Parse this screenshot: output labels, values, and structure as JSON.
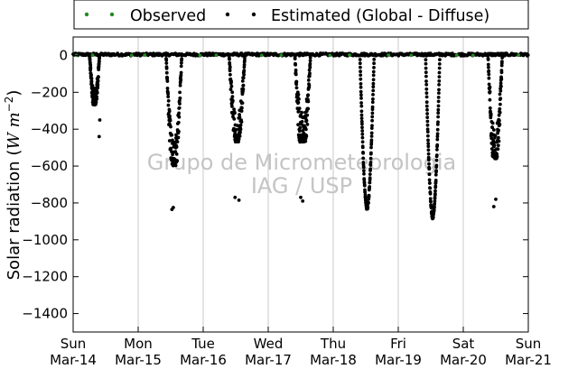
{
  "chart_data": {
    "type": "scatter",
    "title": "",
    "ylabel": "Solar radiation",
    "ylabel_unit_math": "(W m^{-2})",
    "ylim": [
      -1500,
      100
    ],
    "yticks": [
      0,
      -200,
      -400,
      -600,
      -800,
      -1000,
      -1200,
      -1400
    ],
    "xlim": [
      "2010-03-14",
      "2010-03-21"
    ],
    "xticks": [
      {
        "weekday": "Sun",
        "date": "Mar-14"
      },
      {
        "weekday": "Mon",
        "date": "Mar-15"
      },
      {
        "weekday": "Tue",
        "date": "Mar-16"
      },
      {
        "weekday": "Wed",
        "date": "Mar-17"
      },
      {
        "weekday": "Thu",
        "date": "Mar-18"
      },
      {
        "weekday": "Fri",
        "date": "Mar-19"
      },
      {
        "weekday": "Sat",
        "date": "Mar-20"
      },
      {
        "weekday": "Sun",
        "date": "Mar-21"
      }
    ],
    "grid": "vertical",
    "legend_position": "top",
    "watermark": [
      "Grupo de Micrometeorologia",
      "IAG / USP"
    ],
    "series": [
      {
        "name": "Observed",
        "color": "#228b22",
        "marker": "dot",
        "note_points": "values near 0 W/m2 throughout",
        "points": [
          {
            "day": 0.05,
            "value": 0
          },
          {
            "day": 0.3,
            "value": 1
          },
          {
            "day": 0.9,
            "value": 0
          },
          {
            "day": 1.1,
            "value": 2
          },
          {
            "day": 1.95,
            "value": 0
          },
          {
            "day": 2.2,
            "value": 1
          },
          {
            "day": 2.9,
            "value": 0
          },
          {
            "day": 3.2,
            "value": 1
          },
          {
            "day": 3.95,
            "value": 0
          },
          {
            "day": 4.25,
            "value": 2
          },
          {
            "day": 4.85,
            "value": 1
          },
          {
            "day": 5.2,
            "value": 0
          },
          {
            "day": 5.9,
            "value": 1
          },
          {
            "day": 6.15,
            "value": 0
          },
          {
            "day": 6.85,
            "value": 1
          }
        ]
      },
      {
        "name": "Estimated (Global - Diffuse)",
        "color": "#000000",
        "marker": "dot",
        "days": [
          {
            "center": 0.33,
            "width": 0.14,
            "peak": -230,
            "spread": 130,
            "outliers": [
              [
                0.4,
                -440
              ],
              [
                0.41,
                -350
              ]
            ]
          },
          {
            "center": 1.55,
            "width": 0.22,
            "peak": -560,
            "spread": 260,
            "outliers": [
              [
                1.52,
                -835
              ],
              [
                1.54,
                -825
              ]
            ]
          },
          {
            "center": 2.52,
            "width": 0.22,
            "peak": -430,
            "spread": 280,
            "outliers": [
              [
                2.55,
                -785
              ],
              [
                2.49,
                -770
              ]
            ]
          },
          {
            "center": 3.53,
            "width": 0.22,
            "peak": -430,
            "spread": 330,
            "outliers": [
              [
                3.53,
                -790
              ],
              [
                3.5,
                -770
              ]
            ]
          },
          {
            "center": 4.52,
            "width": 0.2,
            "peak": -820,
            "spread": 30,
            "outliers": []
          },
          {
            "center": 5.53,
            "width": 0.2,
            "peak": -870,
            "spread": 25,
            "outliers": []
          },
          {
            "center": 6.49,
            "width": 0.2,
            "peak": -520,
            "spread": 300,
            "outliers": [
              [
                6.47,
                -820
              ],
              [
                6.5,
                -780
              ]
            ]
          }
        ]
      }
    ]
  }
}
